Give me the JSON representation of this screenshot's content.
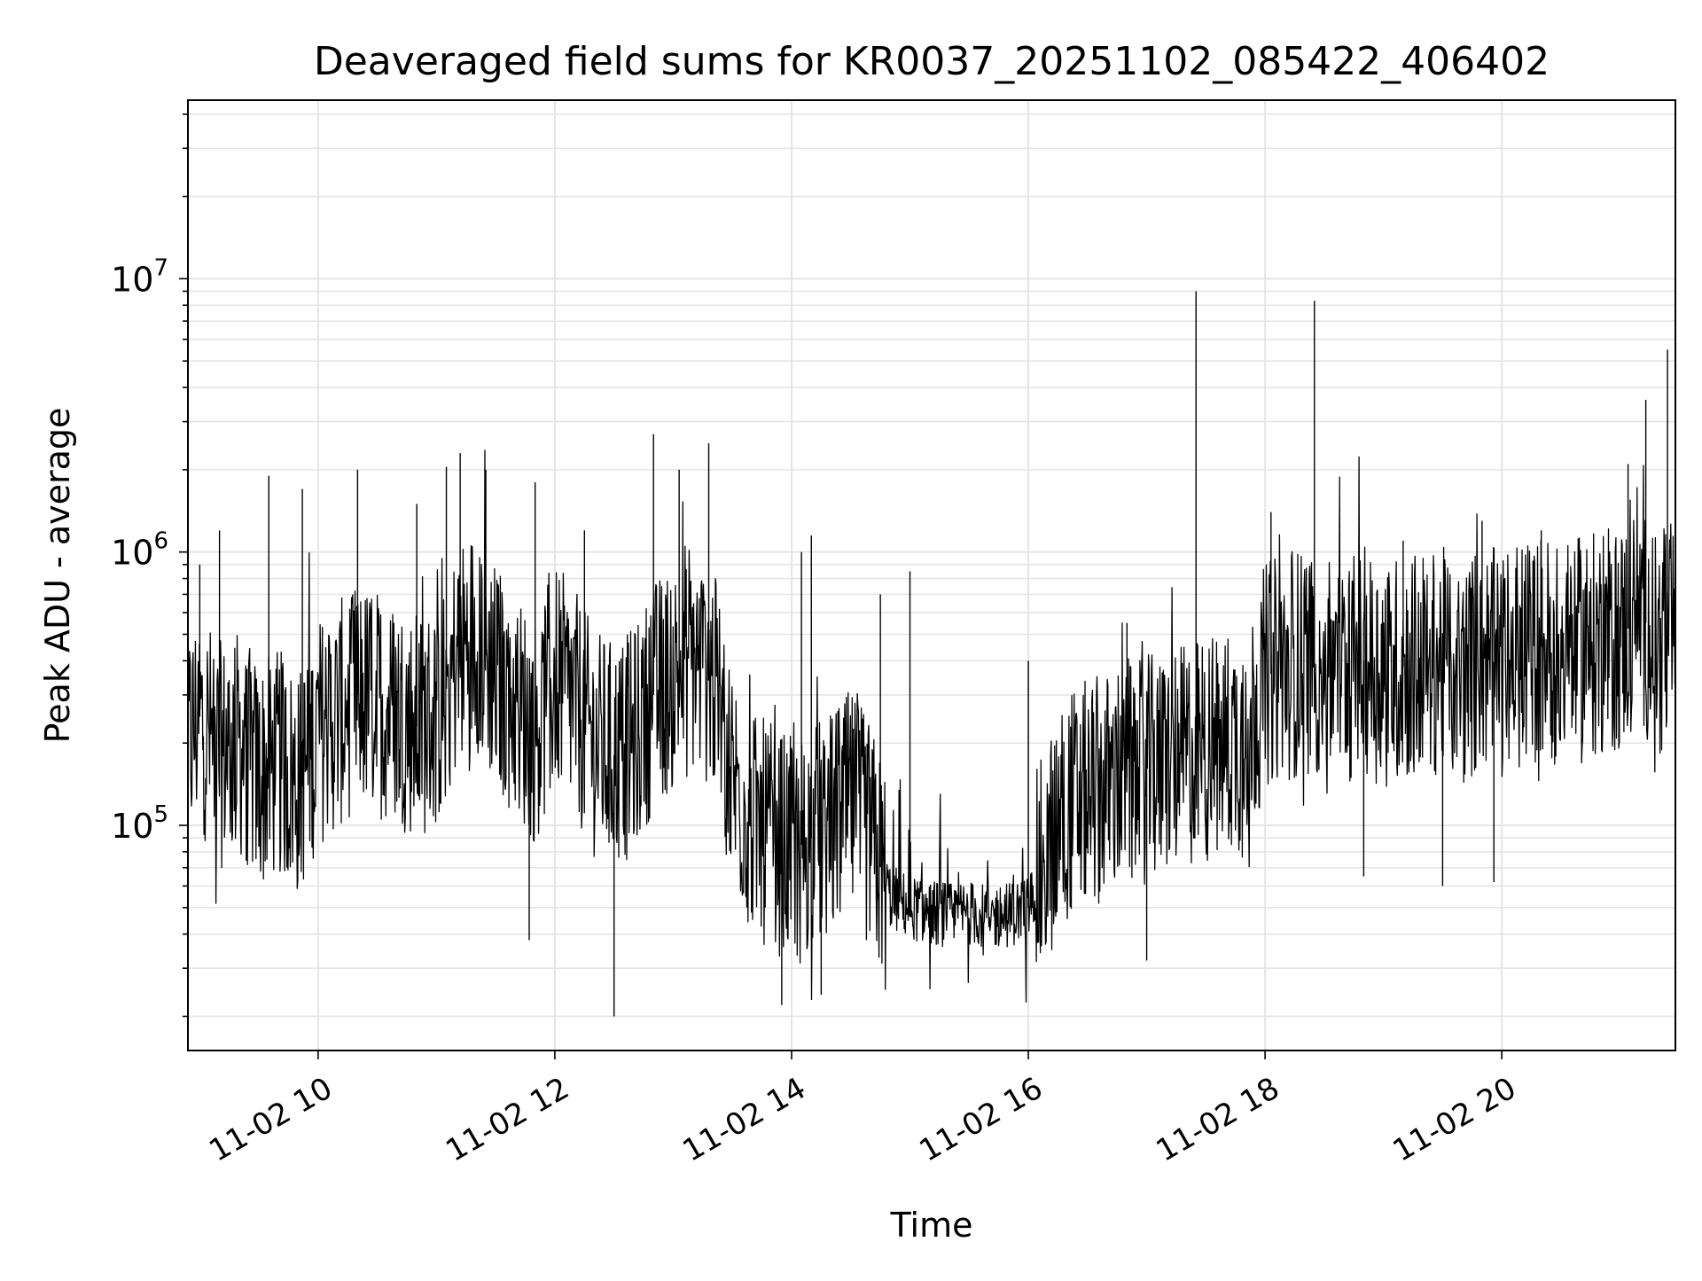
{
  "chart_data": {
    "type": "line",
    "title": "Deaveraged field sums for KR0037_20251102_085422_406402",
    "xlabel": "Time",
    "ylabel": "Peak ADU - average",
    "yscale": "log",
    "ylim": [
      15000,
      45000000
    ],
    "xlim": [
      "2025-11-02 08:54",
      "2025-11-02 21:28"
    ],
    "grid": true,
    "line_color": "#000000",
    "grid_color": "#e5e5e5",
    "x_ticks": [
      {
        "value": "2025-11-02 10:00",
        "label": "11-02 10"
      },
      {
        "value": "2025-11-02 12:00",
        "label": "11-02 12"
      },
      {
        "value": "2025-11-02 14:00",
        "label": "11-02 14"
      },
      {
        "value": "2025-11-02 16:00",
        "label": "11-02 16"
      },
      {
        "value": "2025-11-02 18:00",
        "label": "11-02 18"
      },
      {
        "value": "2025-11-02 20:00",
        "label": "11-02 20"
      }
    ],
    "y_ticks": [
      {
        "value": 100000,
        "base": "10",
        "exp": "5"
      },
      {
        "value": 1000000,
        "base": "10",
        "exp": "6"
      },
      {
        "value": 10000000,
        "base": "10",
        "exp": "7"
      }
    ],
    "series": [
      {
        "x": [
          "2025-11-02 08:54",
          "2025-11-02 09:00",
          "2025-11-02 09:10",
          "2025-11-02 09:20",
          "2025-11-02 09:30",
          "2025-11-02 09:40",
          "2025-11-02 09:50",
          "2025-11-02 10:00",
          "2025-11-02 10:10",
          "2025-11-02 10:20",
          "2025-11-02 10:30",
          "2025-11-02 10:40",
          "2025-11-02 10:50",
          "2025-11-02 11:00",
          "2025-11-02 11:10",
          "2025-11-02 11:20",
          "2025-11-02 11:30",
          "2025-11-02 11:40",
          "2025-11-02 11:50",
          "2025-11-02 12:00",
          "2025-11-02 12:10",
          "2025-11-02 12:20",
          "2025-11-02 12:30",
          "2025-11-02 12:40",
          "2025-11-02 12:50",
          "2025-11-02 13:00",
          "2025-11-02 13:10",
          "2025-11-02 13:20",
          "2025-11-02 13:30",
          "2025-11-02 13:40",
          "2025-11-02 13:50",
          "2025-11-02 14:00",
          "2025-11-02 14:10",
          "2025-11-02 14:20",
          "2025-11-02 14:30",
          "2025-11-02 14:40",
          "2025-11-02 14:50",
          "2025-11-02 15:00",
          "2025-11-02 15:10",
          "2025-11-02 15:20",
          "2025-11-02 15:30",
          "2025-11-02 15:40",
          "2025-11-02 15:50",
          "2025-11-02 16:00",
          "2025-11-02 16:10",
          "2025-11-02 16:20",
          "2025-11-02 16:30",
          "2025-11-02 16:40",
          "2025-11-02 16:50",
          "2025-11-02 17:00",
          "2025-11-02 17:10",
          "2025-11-02 17:20",
          "2025-11-02 17:30",
          "2025-11-02 17:40",
          "2025-11-02 17:50",
          "2025-11-02 18:00",
          "2025-11-02 18:10",
          "2025-11-02 18:20",
          "2025-11-02 18:30",
          "2025-11-02 18:40",
          "2025-11-02 18:50",
          "2025-11-02 19:00",
          "2025-11-02 19:10",
          "2025-11-02 19:20",
          "2025-11-02 19:30",
          "2025-11-02 19:40",
          "2025-11-02 19:50",
          "2025-11-02 20:00",
          "2025-11-02 20:10",
          "2025-11-02 20:20",
          "2025-11-02 20:30",
          "2025-11-02 20:40",
          "2025-11-02 20:50",
          "2025-11-02 21:00",
          "2025-11-02 21:10",
          "2025-11-02 21:20",
          "2025-11-02 21:28"
        ],
        "y": [
          200000,
          250000,
          180000,
          200000,
          150000,
          170000,
          140000,
          220000,
          250000,
          300000,
          280000,
          260000,
          230000,
          250000,
          400000,
          500000,
          350000,
          280000,
          220000,
          350000,
          280000,
          200000,
          180000,
          200000,
          300000,
          350000,
          400000,
          350000,
          150000,
          100000,
          90000,
          80000,
          90000,
          100000,
          120000,
          90000,
          55000,
          50000,
          48000,
          47000,
          48000,
          46000,
          47000,
          50000,
          80000,
          120000,
          130000,
          140000,
          150000,
          160000,
          170000,
          180000,
          190000,
          200000,
          210000,
          350000,
          380000,
          400000,
          380000,
          370000,
          400000,
          360000,
          380000,
          390000,
          400000,
          350000,
          420000,
          380000,
          420000,
          450000,
          430000,
          440000,
          460000,
          480000,
          600000,
          450000,
          500000
        ],
        "spikes": [
          {
            "x": "2025-11-02 09:00",
            "y": 900000
          },
          {
            "x": "2025-11-02 09:10",
            "y": 1200000
          },
          {
            "x": "2025-11-02 09:35",
            "y": 1900000
          },
          {
            "x": "2025-11-02 09:52",
            "y": 1700000
          },
          {
            "x": "2025-11-02 10:20",
            "y": 2000000
          },
          {
            "x": "2025-11-02 10:50",
            "y": 1500000
          },
          {
            "x": "2025-11-02 11:05",
            "y": 2050000
          },
          {
            "x": "2025-11-02 11:12",
            "y": 2300000
          },
          {
            "x": "2025-11-02 11:25",
            "y": 2000000
          },
          {
            "x": "2025-11-02 11:50",
            "y": 1800000
          },
          {
            "x": "2025-11-02 12:15",
            "y": 1200000
          },
          {
            "x": "2025-11-02 12:50",
            "y": 2700000
          },
          {
            "x": "2025-11-02 13:03",
            "y": 2000000
          },
          {
            "x": "2025-11-02 13:18",
            "y": 2500000
          },
          {
            "x": "2025-11-02 14:05",
            "y": 1000000
          },
          {
            "x": "2025-11-02 14:10",
            "y": 1150000
          },
          {
            "x": "2025-11-02 14:45",
            "y": 700000
          },
          {
            "x": "2025-11-02 15:00",
            "y": 850000
          },
          {
            "x": "2025-11-02 16:00",
            "y": 400000
          },
          {
            "x": "2025-11-02 16:50",
            "y": 550000
          },
          {
            "x": "2025-11-02 17:25",
            "y": 9000000
          },
          {
            "x": "2025-11-02 18:03",
            "y": 1400000
          },
          {
            "x": "2025-11-02 18:25",
            "y": 8300000
          },
          {
            "x": "2025-11-02 19:10",
            "y": 1100000
          },
          {
            "x": "2025-11-02 19:50",
            "y": 1300000
          },
          {
            "x": "2025-11-02 20:20",
            "y": 1200000
          },
          {
            "x": "2025-11-02 21:04",
            "y": 2100000
          },
          {
            "x": "2025-11-02 21:13",
            "y": 3600000
          },
          {
            "x": "2025-11-02 21:24",
            "y": 5500000
          },
          {
            "x": "2025-11-02 12:30",
            "y": 20000
          },
          {
            "x": "2025-11-02 13:55",
            "y": 22000
          },
          {
            "x": "2025-11-02 14:15",
            "y": 24000
          },
          {
            "x": "2025-11-02 11:47",
            "y": 38000
          },
          {
            "x": "2025-11-02 17:00",
            "y": 32000
          },
          {
            "x": "2025-11-02 18:50",
            "y": 65000
          },
          {
            "x": "2025-11-02 19:30",
            "y": 60000
          },
          {
            "x": "2025-11-02 19:56",
            "y": 62000
          }
        ]
      }
    ]
  }
}
